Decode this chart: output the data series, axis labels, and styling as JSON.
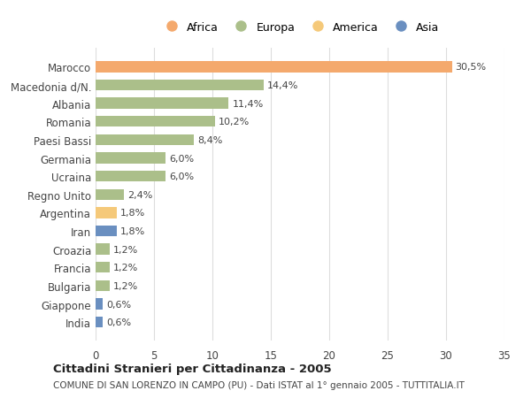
{
  "categories": [
    "Marocco",
    "Macedonia d/N.",
    "Albania",
    "Romania",
    "Paesi Bassi",
    "Germania",
    "Ucraina",
    "Regno Unito",
    "Argentina",
    "Iran",
    "Croazia",
    "Francia",
    "Bulgaria",
    "Giappone",
    "India"
  ],
  "values": [
    30.5,
    14.4,
    11.4,
    10.2,
    8.4,
    6.0,
    6.0,
    2.4,
    1.8,
    1.8,
    1.2,
    1.2,
    1.2,
    0.6,
    0.6
  ],
  "labels": [
    "30,5%",
    "14,4%",
    "11,4%",
    "10,2%",
    "8,4%",
    "6,0%",
    "6,0%",
    "2,4%",
    "1,8%",
    "1,8%",
    "1,2%",
    "1,2%",
    "1,2%",
    "0,6%",
    "0,6%"
  ],
  "colors": [
    "#F4A96D",
    "#ABBF8A",
    "#ABBF8A",
    "#ABBF8A",
    "#ABBF8A",
    "#ABBF8A",
    "#ABBF8A",
    "#ABBF8A",
    "#F5C97A",
    "#6A8FC0",
    "#ABBF8A",
    "#ABBF8A",
    "#ABBF8A",
    "#6A8FC0",
    "#6A8FC0"
  ],
  "legend": [
    {
      "label": "Africa",
      "color": "#F4A96D"
    },
    {
      "label": "Europa",
      "color": "#ABBF8A"
    },
    {
      "label": "America",
      "color": "#F5C97A"
    },
    {
      "label": "Asia",
      "color": "#6A8FC0"
    }
  ],
  "xlim": [
    0,
    35
  ],
  "xticks": [
    0,
    5,
    10,
    15,
    20,
    25,
    30,
    35
  ],
  "title": "Cittadini Stranieri per Cittadinanza - 2005",
  "subtitle": "COMUNE DI SAN LORENZO IN CAMPO (PU) - Dati ISTAT al 1° gennaio 2005 - TUTTITALIA.IT",
  "background_color": "#FFFFFF",
  "grid_color": "#DDDDDD"
}
